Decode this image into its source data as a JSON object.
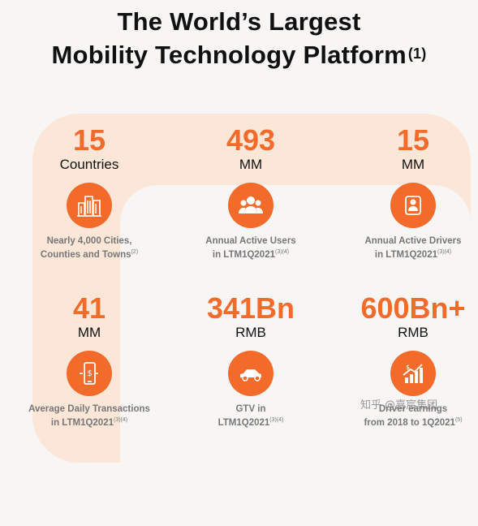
{
  "header": {
    "title_line1": "The World’s Largest",
    "title_line2": "Mobility Technology Platform",
    "title_footnote": "(1)"
  },
  "stats": [
    {
      "value": "15",
      "unit": "Countries",
      "desc_line1": "Nearly 4,000 Cities,",
      "desc_line2": "Counties and Towns",
      "footnote": "(2)",
      "icon": "city-buildings-icon"
    },
    {
      "value": "493",
      "unit": "MM",
      "desc_line1": "Annual Active Users",
      "desc_line2": "in LTM1Q2021",
      "footnote": "(3)(4)",
      "icon": "users-group-icon"
    },
    {
      "value": "15",
      "unit": "MM",
      "desc_line1": "Annual Active Drivers",
      "desc_line2": "in LTM1Q2021",
      "footnote": "(3)(4)",
      "icon": "driver-icon"
    },
    {
      "value": "41",
      "unit": "MM",
      "desc_line1": "Average Daily Transactions",
      "desc_line2": "in  LTM1Q2021",
      "footnote": "(3)(4)",
      "icon": "phone-payment-icon"
    },
    {
      "value": "341Bn",
      "unit": "RMB",
      "desc_line1": "GTV in",
      "desc_line2": "LTM1Q2021",
      "footnote": "(3)(4)",
      "icon": "car-icon"
    },
    {
      "value": "600Bn+",
      "unit": "RMB",
      "desc_line1": "Driver earnings",
      "desc_line2": "from 2018 to 1Q2021",
      "footnote": "(5)",
      "icon": "earnings-chart-icon"
    }
  ],
  "watermark": "知乎 @嘉宸集团",
  "colors": {
    "accent": "#f26b2b",
    "arc": "#fbe6d8",
    "background": "#f7f6f5"
  }
}
